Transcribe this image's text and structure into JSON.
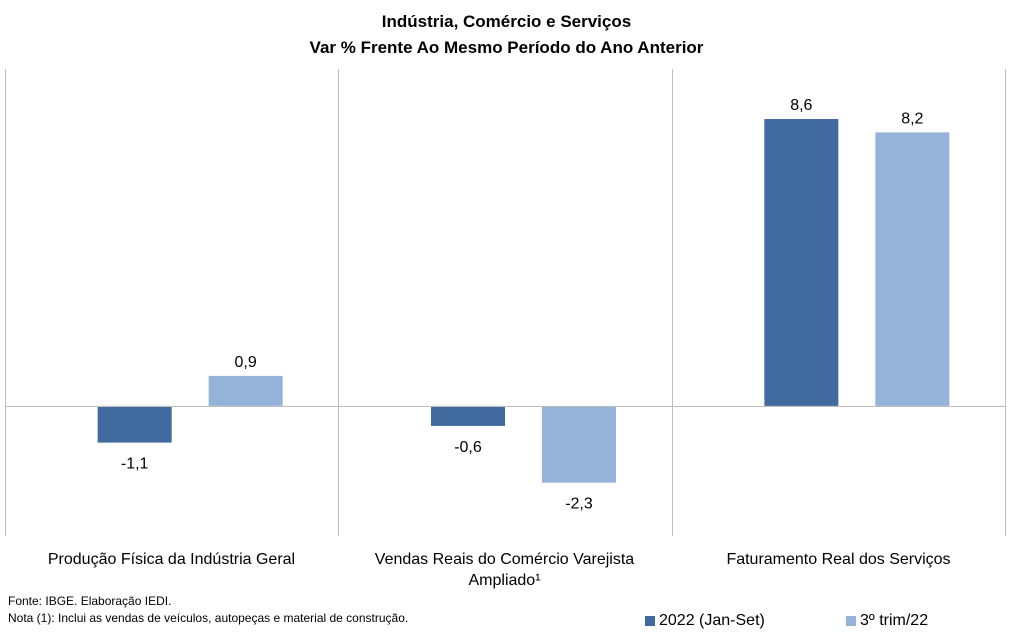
{
  "title": "Indústria,  Comércio  e  Serviços",
  "subtitle": "Var % Frente Ao Mesmo Período do Ano Anterior",
  "chart_data": {
    "type": "bar",
    "categories": [
      "Produção Física da Indústria Geral",
      "Vendas Reais do Comércio Varejista Ampliado¹",
      "Faturamento Real dos Serviços"
    ],
    "series": [
      {
        "name": "2022 (Jan-Set)",
        "values": [
          -1.1,
          -0.6,
          8.6
        ],
        "labels": [
          "-1,1",
          "-0,6",
          "8,6"
        ],
        "color": "#416A9E"
      },
      {
        "name": "3º trim/22",
        "values": [
          0.9,
          -2.3,
          8.2
        ],
        "labels": [
          "0,9",
          "-2,3",
          "8,2"
        ],
        "color": "#95B2D8"
      }
    ],
    "ylim": [
      -3.9,
      10.1
    ],
    "grid": false,
    "legend": "bottom-right"
  },
  "category_labels": {
    "c0": "Produção Física da Indústria Geral",
    "c1_line1": "Vendas Reais do Comércio Varejista",
    "c1_line2": "Ampliado¹",
    "c2": "Faturamento Real dos Serviços"
  },
  "notes": {
    "source": "Fonte: IBGE. Elaboração IEDI.",
    "note": "Nota (1): Inclui as vendas de veículos, autopeças e material de construção."
  },
  "legend": {
    "s0": "2022 (Jan-Set)",
    "s1": "3º trim/22"
  }
}
